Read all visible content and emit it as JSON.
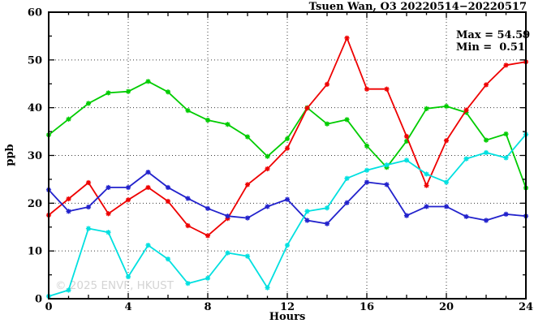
{
  "title": "Tsuen Wan, O3 20220514−20220517",
  "annotation": {
    "max_label": "Max = 54.59",
    "min_label": "Min =  0.51"
  },
  "watermark": "© 2025 ENVF, HKUST",
  "chart_data": {
    "type": "line",
    "title": "Tsuen Wan, O3 20220514−20220517",
    "xlabel": "Hours",
    "ylabel": "ppb",
    "xlim": [
      0,
      24
    ],
    "ylim": [
      0,
      60
    ],
    "xticks_labeled": [
      0,
      4,
      8,
      12,
      16,
      20,
      24
    ],
    "yticks_labeled": [
      0,
      10,
      20,
      30,
      40,
      50,
      60
    ],
    "grid_x": [
      4,
      8,
      12,
      16,
      20
    ],
    "grid_y": [
      10,
      20,
      30,
      40,
      50
    ],
    "grid_style": "dotted",
    "legend": "none",
    "marker": "asterisk",
    "max_value": 54.59,
    "min_value": 0.51,
    "x": [
      0,
      1,
      2,
      3,
      4,
      5,
      6,
      7,
      8,
      9,
      10,
      11,
      12,
      13,
      14,
      15,
      16,
      17,
      18,
      19,
      20,
      21,
      22,
      23,
      24
    ],
    "series": [
      {
        "name": "green",
        "color": "#00cc00",
        "values": [
          34.3,
          37.6,
          40.9,
          43.1,
          43.4,
          45.5,
          43.3,
          39.4,
          37.4,
          36.5,
          33.9,
          29.8,
          33.5,
          40.0,
          36.6,
          37.5,
          32.0,
          27.5,
          33.0,
          39.8,
          40.3,
          39.0,
          33.2,
          34.5,
          23.2
        ]
      },
      {
        "name": "red",
        "color": "#ee0000",
        "values": [
          17.5,
          20.9,
          24.3,
          17.8,
          20.7,
          23.3,
          20.4,
          15.3,
          13.2,
          16.8,
          23.9,
          27.2,
          31.5,
          39.9,
          44.9,
          54.59,
          43.9,
          43.9,
          34.0,
          23.7,
          33.1,
          39.5,
          44.8,
          48.9,
          49.6
        ]
      },
      {
        "name": "blue",
        "color": "#2222cc",
        "values": [
          22.8,
          18.3,
          19.2,
          23.3,
          23.3,
          26.5,
          23.3,
          21.0,
          18.9,
          17.3,
          16.9,
          19.3,
          20.8,
          16.4,
          15.7,
          20.1,
          24.4,
          23.9,
          17.4,
          19.3,
          19.3,
          17.2,
          16.4,
          17.7,
          17.3
        ]
      },
      {
        "name": "cyan",
        "color": "#00e0e0",
        "values": [
          0.51,
          1.8,
          14.7,
          13.9,
          4.6,
          11.2,
          8.3,
          3.2,
          4.3,
          9.6,
          8.9,
          2.3,
          11.2,
          18.3,
          19.0,
          25.2,
          26.9,
          28.0,
          29.0,
          26.1,
          24.4,
          29.3,
          30.6,
          29.5,
          34.4
        ]
      }
    ]
  }
}
